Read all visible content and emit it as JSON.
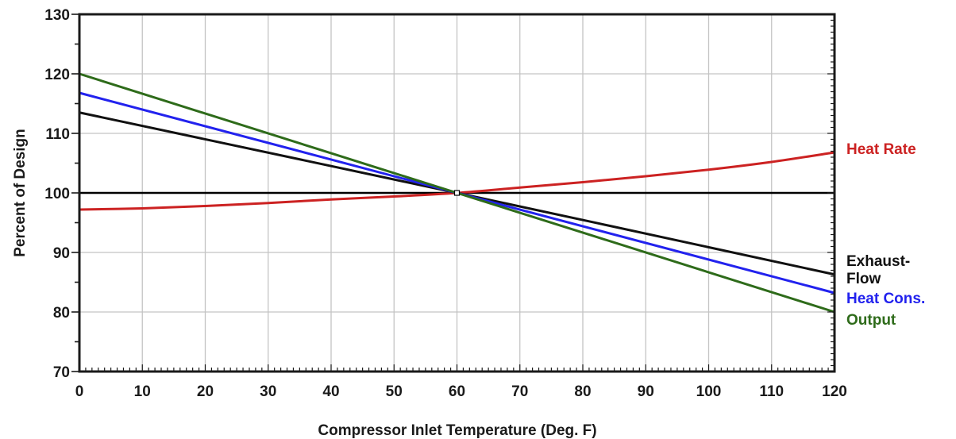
{
  "chart_data": {
    "type": "line",
    "title": "",
    "xlabel": "Compressor Inlet Temperature (Deg. F)",
    "ylabel": "Percent of Design",
    "xlim": [
      0,
      120
    ],
    "ylim": [
      70,
      130
    ],
    "x_ticks": [
      0,
      10,
      20,
      30,
      40,
      50,
      60,
      70,
      80,
      90,
      100,
      110,
      120
    ],
    "y_ticks": [
      70,
      80,
      90,
      100,
      110,
      120,
      130
    ],
    "grid": true,
    "reference_line": {
      "y": 100,
      "color": "#000000"
    },
    "series": [
      {
        "name": "Heat Rate",
        "color": "#cc2222",
        "x": [
          0,
          10,
          20,
          30,
          40,
          50,
          60,
          70,
          80,
          90,
          100,
          110,
          120
        ],
        "values": [
          97.2,
          97.4,
          97.8,
          98.3,
          98.9,
          99.4,
          100.0,
          100.9,
          101.8,
          102.8,
          103.9,
          105.2,
          106.8
        ]
      },
      {
        "name": "Exhaust Flow",
        "label_lines": [
          "Exhaust-",
          "Flow"
        ],
        "color": "#111111",
        "x": [
          0,
          60,
          120
        ],
        "values": [
          113.5,
          100.0,
          86.3
        ]
      },
      {
        "name": "Heat Cons.",
        "color": "#2222ee",
        "x": [
          0,
          60,
          120
        ],
        "values": [
          116.8,
          100.0,
          83.2
        ]
      },
      {
        "name": "Output",
        "color": "#2e6b1a",
        "x": [
          0,
          60,
          120
        ],
        "values": [
          120.0,
          100.0,
          80.0
        ]
      }
    ],
    "legend": "inline-right"
  }
}
